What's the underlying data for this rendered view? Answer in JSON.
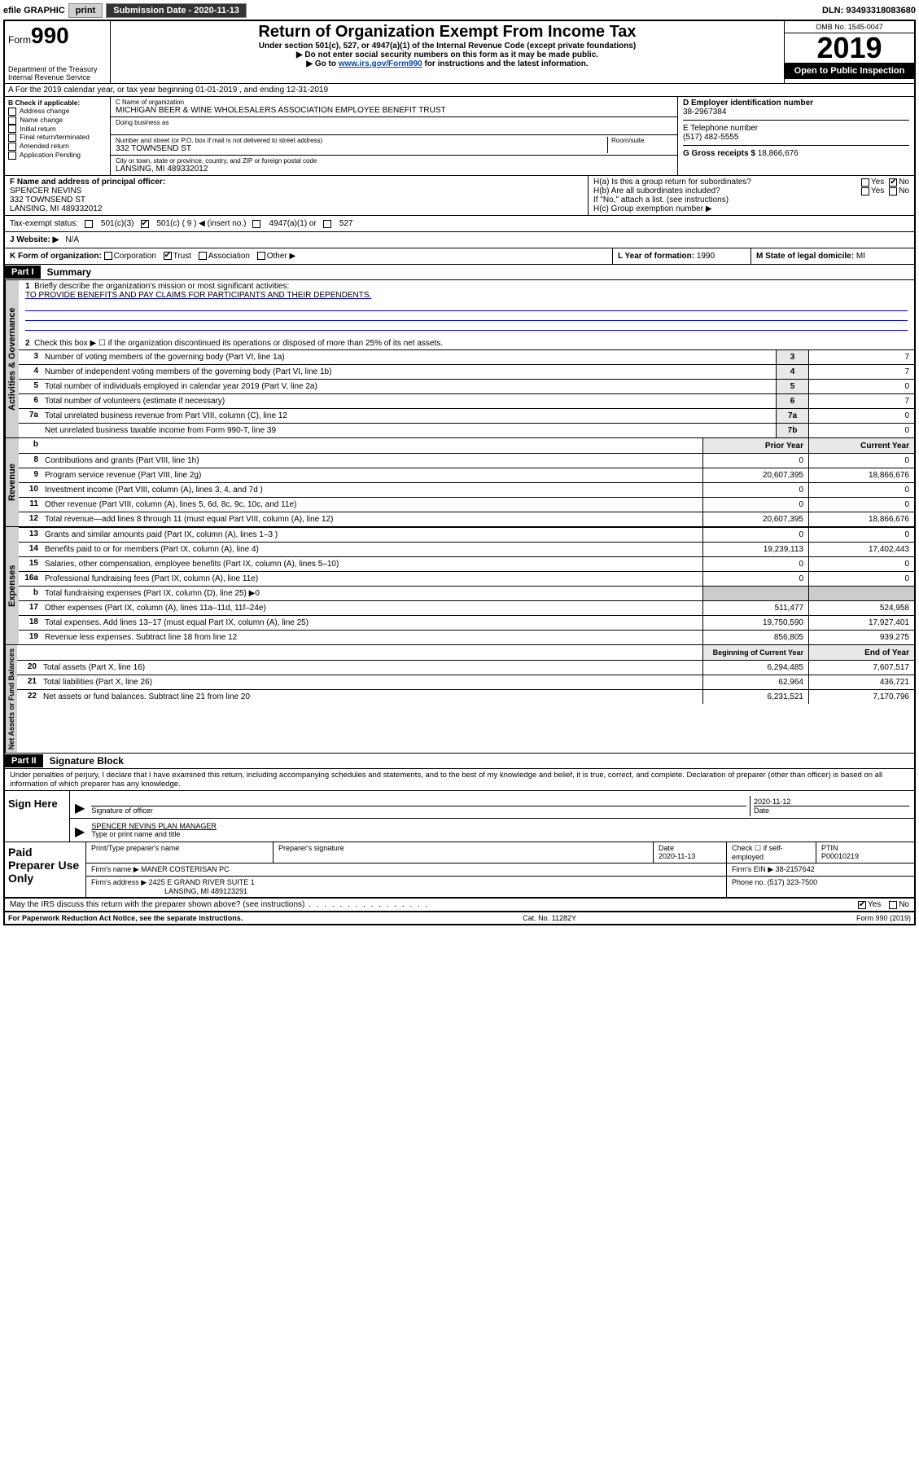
{
  "topbar": {
    "efile": "efile GRAPHIC",
    "print": "print",
    "sub_label": "Submission Date - 2020-11-13",
    "dln": "DLN: 93493318083680"
  },
  "header": {
    "form_small": "Form",
    "form_num": "990",
    "dept": "Department of the Treasury\nInternal Revenue Service",
    "title": "Return of Organization Exempt From Income Tax",
    "sub1": "Under section 501(c), 527, or 4947(a)(1) of the Internal Revenue Code (except private foundations)",
    "sub2": "▶ Do not enter social security numbers on this form as it may be made public.",
    "sub3_pre": "▶ Go to ",
    "sub3_link": "www.irs.gov/Form990",
    "sub3_post": " for instructions and the latest information.",
    "omb": "OMB No. 1545-0047",
    "year": "2019",
    "open": "Open to Public Inspection"
  },
  "row_a": {
    "text": "A For the 2019 calendar year, or tax year beginning 01-01-2019    , and ending 12-31-2019"
  },
  "section_b": {
    "label": "B Check if applicable:",
    "opts": [
      "Address change",
      "Name change",
      "Initial return",
      "Final return/terminated",
      "Amended return",
      "Application Pending"
    ],
    "c_name_label": "C Name of organization",
    "c_name": "MICHIGAN BEER & WINE WHOLESALERS ASSOCIATION EMPLOYEE BENEFIT TRUST",
    "dba_label": "Doing business as",
    "addr_label": "Number and street (or P.O. box if mail is not delivered to street address)",
    "room_label": "Room/suite",
    "addr": "332 TOWNSEND ST",
    "city_label": "City or town, state or province, country, and ZIP or foreign postal code",
    "city": "LANSING, MI  489332012",
    "d_label": "D Employer identification number",
    "d_val": "38-2967384",
    "e_label": "E Telephone number",
    "e_val": "(517) 482-5555",
    "g_label": "G Gross receipts $",
    "g_val": "18,866,676"
  },
  "section_f": {
    "f_label": "F Name and address of principal officer:",
    "f_name": "SPENCER NEVINS",
    "f_addr1": "332 TOWNSEND ST",
    "f_addr2": "LANSING, MI  489332012",
    "ha_label": "H(a)  Is this a group return for subordinates?",
    "hb_label": "H(b)  Are all subordinates included?",
    "hb_note": "If \"No,\" attach a list. (see instructions)",
    "hc_label": "H(c)  Group exemption number ▶",
    "yes": "Yes",
    "no": "No"
  },
  "tax_status": {
    "label": "Tax-exempt status:",
    "c3": "501(c)(3)",
    "c_other": "501(c) ( 9 ) ◀ (insert no.)",
    "a1": "4947(a)(1) or",
    "s527": "527"
  },
  "website": {
    "label": "J Website: ▶",
    "val": "N/A"
  },
  "row_k": {
    "label": "K Form of organization:",
    "corp": "Corporation",
    "trust": "Trust",
    "assoc": "Association",
    "other": "Other ▶",
    "l_label": "L Year of formation:",
    "l_val": "1990",
    "m_label": "M State of legal domicile:",
    "m_val": "MI"
  },
  "part1": {
    "header": "Part I",
    "title": "Summary",
    "l1_label": "Briefly describe the organization's mission or most significant activities:",
    "l1_text": "TO PROVIDE BENEFITS AND PAY CLAIMS FOR PARTICIPANTS AND THEIR DEPENDENTS.",
    "l2_label": "Check this box ▶ ☐  if the organization discontinued its operations or disposed of more than 25% of its net assets.",
    "lines_gov": [
      {
        "n": "3",
        "t": "Number of voting members of the governing body (Part VI, line 1a)",
        "ln": "3",
        "v": "7"
      },
      {
        "n": "4",
        "t": "Number of independent voting members of the governing body (Part VI, line 1b)",
        "ln": "4",
        "v": "7"
      },
      {
        "n": "5",
        "t": "Total number of individuals employed in calendar year 2019 (Part V, line 2a)",
        "ln": "5",
        "v": "0"
      },
      {
        "n": "6",
        "t": "Total number of volunteers (estimate if necessary)",
        "ln": "6",
        "v": "7"
      },
      {
        "n": "7a",
        "t": "Total unrelated business revenue from Part VIII, column (C), line 12",
        "ln": "7a",
        "v": "0"
      },
      {
        "n": "",
        "t": "Net unrelated business taxable income from Form 990-T, line 39",
        "ln": "7b",
        "v": "0"
      }
    ],
    "col_prior": "Prior Year",
    "col_current": "Current Year",
    "lines_rev": [
      {
        "n": "8",
        "t": "Contributions and grants (Part VIII, line 1h)",
        "p": "0",
        "c": "0"
      },
      {
        "n": "9",
        "t": "Program service revenue (Part VIII, line 2g)",
        "p": "20,607,395",
        "c": "18,866,676"
      },
      {
        "n": "10",
        "t": "Investment income (Part VIII, column (A), lines 3, 4, and 7d )",
        "p": "0",
        "c": "0"
      },
      {
        "n": "11",
        "t": "Other revenue (Part VIII, column (A), lines 5, 6d, 8c, 9c, 10c, and 11e)",
        "p": "0",
        "c": "0"
      },
      {
        "n": "12",
        "t": "Total revenue—add lines 8 through 11 (must equal Part VIII, column (A), line 12)",
        "p": "20,607,395",
        "c": "18,866,676"
      }
    ],
    "lines_exp": [
      {
        "n": "13",
        "t": "Grants and similar amounts paid (Part IX, column (A), lines 1–3 )",
        "p": "0",
        "c": "0"
      },
      {
        "n": "14",
        "t": "Benefits paid to or for members (Part IX, column (A), line 4)",
        "p": "19,239,113",
        "c": "17,402,443"
      },
      {
        "n": "15",
        "t": "Salaries, other compensation, employee benefits (Part IX, column (A), lines 5–10)",
        "p": "0",
        "c": "0"
      },
      {
        "n": "16a",
        "t": "Professional fundraising fees (Part IX, column (A), line 11e)",
        "p": "0",
        "c": "0"
      },
      {
        "n": "b",
        "t": "Total fundraising expenses (Part IX, column (D), line 25) ▶0",
        "p": "",
        "c": "",
        "noval": true
      },
      {
        "n": "17",
        "t": "Other expenses (Part IX, column (A), lines 11a–11d, 11f–24e)",
        "p": "511,477",
        "c": "524,958"
      },
      {
        "n": "18",
        "t": "Total expenses. Add lines 13–17 (must equal Part IX, column (A), line 25)",
        "p": "19,750,590",
        "c": "17,927,401"
      },
      {
        "n": "19",
        "t": "Revenue less expenses. Subtract line 18 from line 12",
        "p": "856,805",
        "c": "939,275"
      }
    ],
    "col_begin": "Beginning of Current Year",
    "col_end": "End of Year",
    "lines_net": [
      {
        "n": "20",
        "t": "Total assets (Part X, line 16)",
        "p": "6,294,485",
        "c": "7,607,517"
      },
      {
        "n": "21",
        "t": "Total liabilities (Part X, line 26)",
        "p": "62,964",
        "c": "436,721"
      },
      {
        "n": "22",
        "t": "Net assets or fund balances. Subtract line 21 from line 20",
        "p": "6,231,521",
        "c": "7,170,796"
      }
    ]
  },
  "vtabs": {
    "gov": "Activities & Governance",
    "rev": "Revenue",
    "exp": "Expenses",
    "net": "Net Assets or Fund Balances"
  },
  "part2": {
    "header": "Part II",
    "title": "Signature Block",
    "perjury": "Under penalties of perjury, I declare that I have examined this return, including accompanying schedules and statements, and to the best of my knowledge and belief, it is true, correct, and complete. Declaration of preparer (other than officer) is based on all information of which preparer has any knowledge."
  },
  "sign": {
    "label": "Sign Here",
    "sig_label": "Signature of officer",
    "date_label": "Date",
    "date_val": "2020-11-12",
    "name_val": "SPENCER NEVINS  PLAN MANAGER",
    "name_label": "Type or print name and title"
  },
  "paid": {
    "label": "Paid Preparer Use Only",
    "h_name": "Print/Type preparer's name",
    "h_sig": "Preparer's signature",
    "h_date": "Date",
    "date_val": "2020-11-13",
    "h_check": "Check ☐ if self-employed",
    "h_ptin": "PTIN",
    "ptin_val": "P00010219",
    "firm_name_l": "Firm's name    ▶",
    "firm_name": "MANER COSTERISAN PC",
    "firm_ein_l": "Firm's EIN ▶",
    "firm_ein": "38-2157642",
    "firm_addr_l": "Firm's address ▶",
    "firm_addr1": "2425 E GRAND RIVER SUITE 1",
    "firm_addr2": "LANSING, MI  489123291",
    "phone_l": "Phone no.",
    "phone": "(517) 323-7500"
  },
  "discuss": {
    "text": "May the IRS discuss this return with the preparer shown above? (see instructions)",
    "yes": "Yes",
    "no": "No"
  },
  "footer": {
    "left": "For Paperwork Reduction Act Notice, see the separate instructions.",
    "mid": "Cat. No. 11282Y",
    "right": "Form 990 (2019)"
  }
}
